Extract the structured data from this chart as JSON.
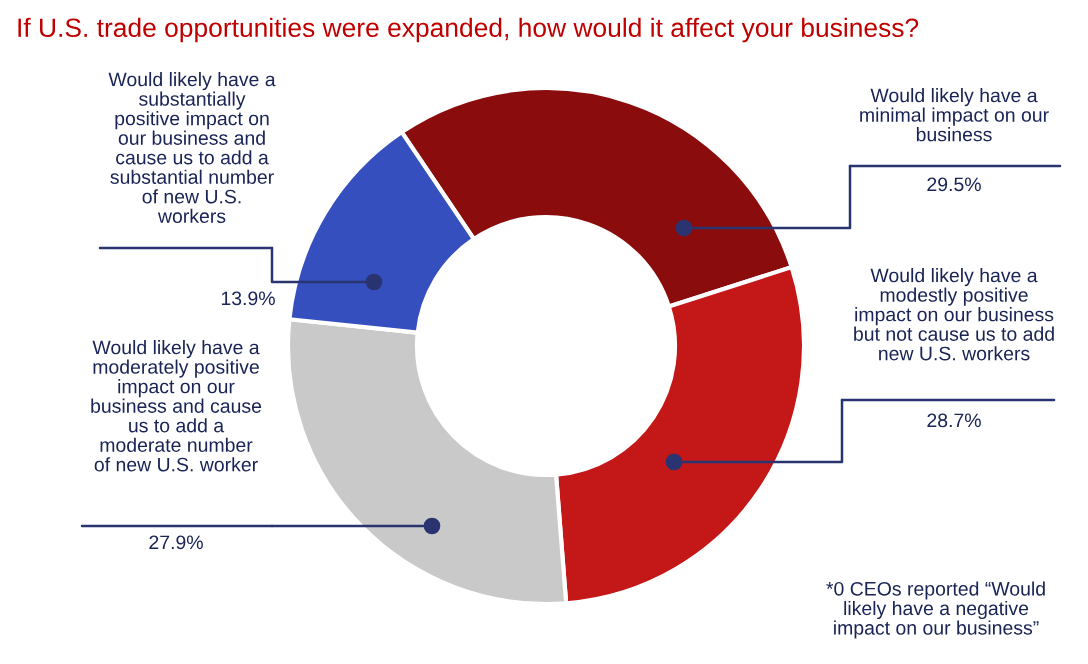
{
  "chart_data": {
    "type": "donut",
    "title": "If U.S. trade opportunities were expanded, how would it affect your business?",
    "categories": [
      "Would likely have a\nminimal impact on our\nbusiness",
      "Would likely have a\nmodestly positive\nimpact on our business\nbut not cause us to add\nnew U.S. workers",
      "Would likely have a\nmoderately positive\nimpact on our\nbusiness and cause\nus to add a\nmoderate number\nof new U.S. worker",
      "Would likely have a\nsubstantially\npositive impact on\nour business and\ncause us to add a\nsubstantial number\nof new U.S.\nworkers"
    ],
    "values": [
      29.5,
      28.7,
      27.9,
      13.9
    ],
    "value_labels": [
      "29.5%",
      "28.7%",
      "27.9%",
      "13.9%"
    ],
    "colors": [
      "#8b0c0c",
      "#c41717",
      "#c9c9c9",
      "#354fbf"
    ],
    "annotations": [
      "*0 CEOs reported “Would\nlikely have a negative\nimpact on our business”"
    ]
  }
}
